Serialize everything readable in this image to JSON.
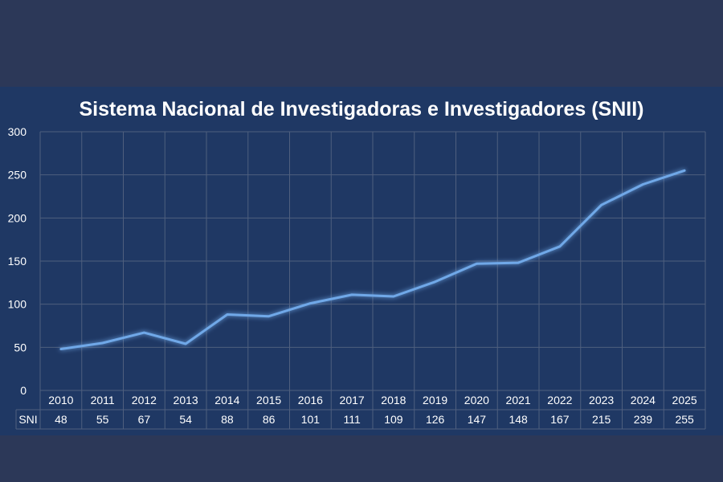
{
  "chart_data": {
    "type": "line",
    "title": "Sistema Nacional de Investigadoras e Investigadores (SNII)",
    "categories": [
      "2010",
      "2011",
      "2012",
      "2013",
      "2014",
      "2015",
      "2016",
      "2017",
      "2018",
      "2019",
      "2020",
      "2021",
      "2022",
      "2023",
      "2024",
      "2025"
    ],
    "series": [
      {
        "name": "SNI",
        "values": [
          48,
          55,
          67,
          54,
          88,
          86,
          101,
          111,
          109,
          126,
          147,
          148,
          167,
          215,
          239,
          255
        ]
      }
    ],
    "ylim": [
      0,
      300
    ],
    "yticks": [
      0,
      50,
      100,
      150,
      200,
      250,
      300
    ],
    "grid": true,
    "data_table": true,
    "line_color": "#6fa8e8"
  }
}
